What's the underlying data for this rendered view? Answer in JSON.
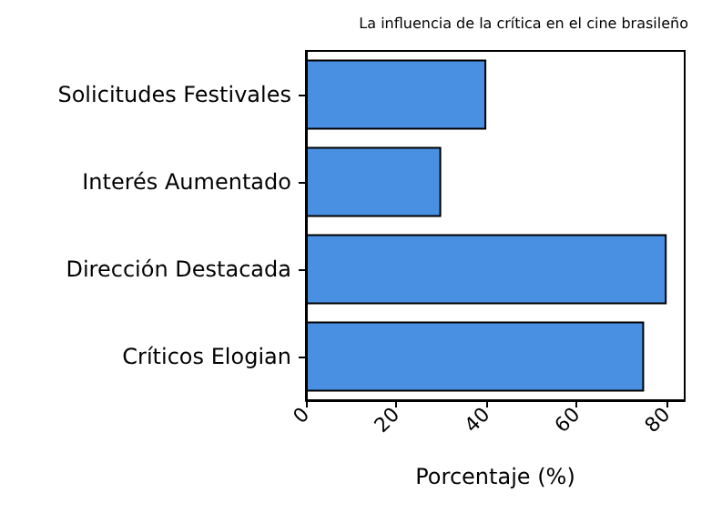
{
  "chart_data": {
    "type": "bar",
    "orientation": "horizontal",
    "title": "La influencia de la crítica en el cine brasileño",
    "xlabel": "Porcentaje (%)",
    "categories": [
      "Solicitudes Festivales",
      "Interés Aumentado",
      "Dirección Destacada",
      "Críticos Elogian"
    ],
    "values": [
      40,
      30,
      80,
      75
    ],
    "color": "#4a90e2",
    "xlim": [
      0,
      84
    ],
    "xticks": [
      0,
      20,
      40,
      60,
      80
    ]
  }
}
